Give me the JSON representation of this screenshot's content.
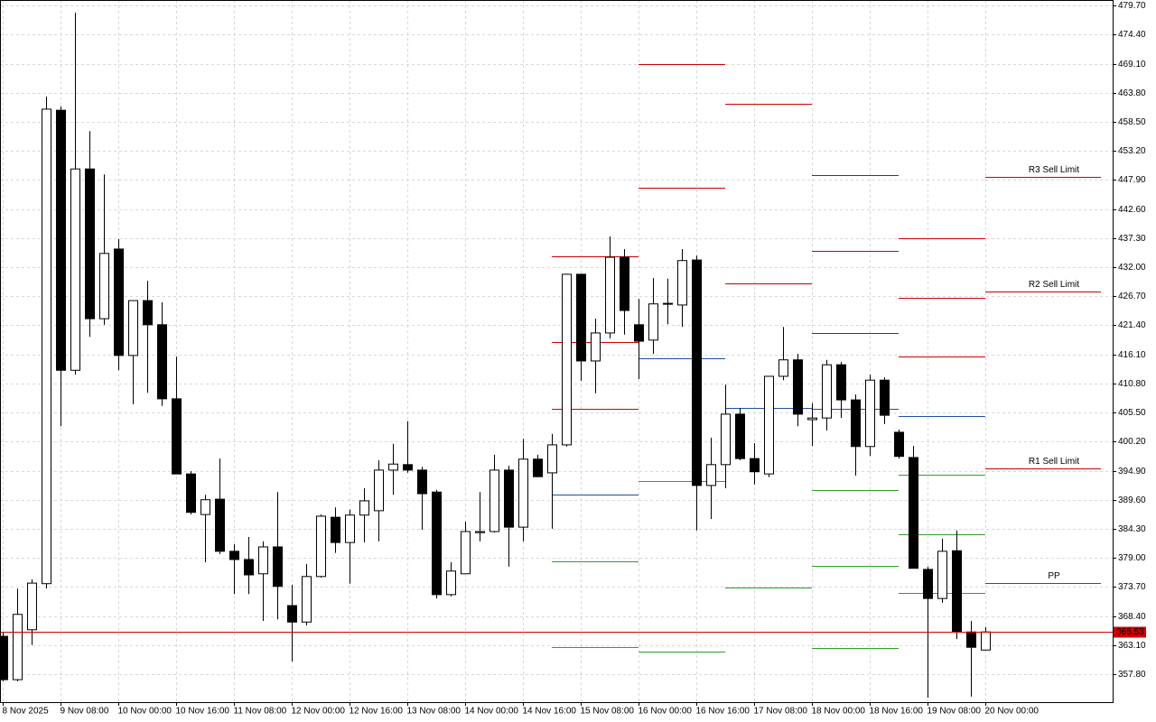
{
  "chart_data": {
    "type": "candlestick",
    "bull_color": "#ffffff",
    "bear_color": "#000000",
    "outline_color": "#000000",
    "grid": true,
    "categories": [
      "8 Nov 2025",
      null,
      null,
      null,
      "9 Nov 08:00",
      null,
      null,
      null,
      "10 Nov 00:00",
      null,
      null,
      null,
      "10 Nov 16:00",
      null,
      null,
      null,
      "11 Nov 08:00",
      null,
      null,
      null,
      "12 Nov 00:00",
      null,
      null,
      null,
      "12 Nov 16:00",
      null,
      null,
      null,
      "13 Nov 08:00",
      null,
      null,
      null,
      "14 Nov 00:00",
      null,
      null,
      null,
      "14 Nov 16:00",
      null,
      null,
      null,
      "15 Nov 08:00",
      null,
      null,
      null,
      "16 Nov 00:00",
      null,
      null,
      null,
      "16 Nov 16:00",
      null,
      null,
      null,
      "17 Nov 08:00",
      null,
      null,
      null,
      "18 Nov 00:00",
      null,
      null,
      null,
      "18 Nov 16:00",
      null,
      null,
      null,
      "19 Nov 08:00",
      null,
      null,
      null,
      "20 Nov 00:00"
    ],
    "open": [
      364.7,
      356.8,
      365.9,
      374.3,
      460.6,
      413.2,
      449.9,
      422.6,
      435.3,
      415.9,
      425.9,
      421.5,
      408.0,
      394.3,
      386.9,
      389.7,
      380.2,
      378.7,
      376.1,
      381.0,
      370.3,
      367.3,
      375.6,
      386.4,
      381.8,
      386.8,
      387.6,
      395.0,
      396.0,
      395.0,
      391.0,
      372.3,
      376.1,
      383.6,
      383.8,
      395.0,
      384.6,
      397.0,
      394.5,
      399.6,
      430.7,
      414.9,
      420.0,
      433.8,
      421.5,
      418.7,
      425.3,
      425.1,
      433.3,
      392.2,
      396.0,
      405.2,
      397.1,
      394.3,
      412.1,
      415.1,
      404.2,
      404.5,
      414.2,
      407.8,
      399.3,
      411.4,
      401.9,
      397.3,
      376.9,
      371.6,
      380.3,
      365.5,
      362.2
    ],
    "high": [
      365.5,
      373.4,
      375.1,
      463.1,
      461.3,
      478.4,
      456.8,
      448.9,
      437.1,
      425.9,
      429.5,
      425.6,
      415.7,
      394.8,
      390.5,
      397.1,
      381.5,
      382.8,
      382.0,
      391.0,
      374.1,
      377.9,
      386.9,
      388.2,
      387.8,
      391.7,
      396.8,
      399.8,
      403.9,
      395.6,
      391.4,
      378.2,
      385.6,
      391.0,
      397.8,
      395.8,
      400.7,
      397.8,
      401.6,
      430.8,
      430.8,
      422.6,
      437.6,
      435.3,
      426.2,
      430.0,
      429.9,
      435.3,
      434.1,
      400.9,
      410.6,
      406.3,
      399.9,
      412.1,
      421.1,
      416.2,
      407.2,
      415.1,
      414.7,
      408.8,
      412.4,
      411.9,
      402.4,
      399.4,
      377.4,
      382.5,
      384.0,
      367.5,
      366.4
    ],
    "low": [
      356.5,
      356.5,
      363.1,
      373.4,
      403.0,
      412.4,
      419.3,
      421.5,
      413.2,
      407.0,
      409.1,
      406.7,
      394.3,
      386.9,
      378.2,
      379.7,
      372.4,
      372.4,
      367.5,
      367.8,
      360.1,
      366.7,
      375.4,
      379.9,
      374.3,
      381.8,
      382.0,
      390.5,
      394.5,
      384.1,
      371.6,
      372.0,
      376.1,
      382.0,
      383.6,
      377.4,
      382.0,
      393.8,
      384.3,
      399.3,
      411.3,
      409.0,
      419.0,
      419.7,
      411.6,
      416.2,
      421.6,
      421.1,
      384.0,
      386.1,
      391.7,
      396.8,
      392.4,
      393.7,
      411.4,
      403.0,
      399.4,
      402.2,
      404.5,
      394.0,
      397.6,
      403.4,
      397.1,
      377.1,
      353.5,
      370.8,
      364.2,
      353.7,
      362.2
    ],
    "close": [
      356.8,
      368.7,
      374.4,
      460.8,
      413.2,
      449.9,
      422.6,
      434.5,
      415.9,
      425.9,
      421.5,
      408.0,
      394.3,
      387.3,
      389.6,
      380.2,
      378.7,
      375.9,
      381.0,
      373.8,
      367.3,
      375.6,
      386.6,
      381.8,
      386.8,
      389.4,
      395.0,
      396.1,
      395.0,
      390.7,
      372.3,
      376.6,
      383.8,
      383.8,
      395.0,
      384.6,
      397.0,
      393.8,
      399.6,
      430.7,
      414.9,
      420.0,
      433.8,
      424.1,
      418.5,
      425.3,
      425.4,
      433.2,
      392.2,
      396.0,
      405.2,
      397.1,
      394.7,
      412.1,
      415.1,
      405.2,
      404.5,
      414.2,
      407.8,
      399.3,
      411.4,
      405.0,
      397.5,
      377.1,
      371.6,
      380.2,
      365.5,
      362.7,
      365.5
    ],
    "ylim": [
      352.7,
      480.7
    ],
    "yticks": [
      {
        "value": 479.7,
        "label": "479.70"
      },
      {
        "value": 474.4,
        "label": "474.40"
      },
      {
        "value": 469.1,
        "label": "469.10"
      },
      {
        "value": 463.8,
        "label": "463.80"
      },
      {
        "value": 458.5,
        "label": "458.50"
      },
      {
        "value": 453.2,
        "label": "453.20"
      },
      {
        "value": 447.9,
        "label": "447.90"
      },
      {
        "value": 442.6,
        "label": "442.60"
      },
      {
        "value": 437.3,
        "label": "437.30"
      },
      {
        "value": 432,
        "label": "432.00"
      },
      {
        "value": 426.7,
        "label": "426.70"
      },
      {
        "value": 421.4,
        "label": "421.40"
      },
      {
        "value": 416.1,
        "label": "416.10"
      },
      {
        "value": 410.8,
        "label": "410.80"
      },
      {
        "value": 405.5,
        "label": "405.50"
      },
      {
        "value": 400.2,
        "label": "400.20"
      },
      {
        "value": 394.9,
        "label": "394.90"
      },
      {
        "value": 389.6,
        "label": "389.60"
      },
      {
        "value": 384.3,
        "label": "384.30"
      },
      {
        "value": 379,
        "label": "379.00"
      },
      {
        "value": 373.7,
        "label": "373.70"
      },
      {
        "value": 368.4,
        "label": "368.40"
      },
      {
        "value": 363.1,
        "label": "363.10"
      },
      {
        "value": 357.8,
        "label": "357.80"
      }
    ],
    "current_price": 365.53,
    "current_price_color": "#d00000",
    "pivot_colors": {
      "resistance": "#d00000",
      "pp": "#1f4fa8",
      "support": "#2ca02c"
    },
    "pivot_sessions": [
      {
        "resistance": [
          434.0,
          418.3,
          406.2
        ],
        "pp": 390.5,
        "support": [
          378.4,
          362.7
        ]
      },
      {
        "resistance": [
          469.0,
          446.5
        ],
        "pp": 415.4,
        "support": [
          393.0,
          361.9
        ]
      },
      {
        "resistance": [
          461.8,
          429.0
        ],
        "pp": 406.3,
        "support": [
          373.6
        ]
      },
      {
        "resistance": [
          448.8,
          435.0,
          420.0
        ],
        "pp": 406.2,
        "support": [
          391.4,
          377.5,
          362.6
        ]
      },
      {
        "resistance": [
          437.3,
          426.4,
          415.7
        ],
        "pp": 404.9,
        "support": [
          394.2,
          383.3,
          372.6
        ]
      },
      {
        "resistance": [
          {
            "value": 448.5,
            "label": "R3 Sell Limit"
          },
          {
            "value": 427.6,
            "label": "R2 Sell Limit"
          },
          {
            "value": 395.3,
            "label": "R1 Sell Limit"
          }
        ],
        "pp": {
          "value": 374.4,
          "label": "PP"
        }
      }
    ]
  }
}
